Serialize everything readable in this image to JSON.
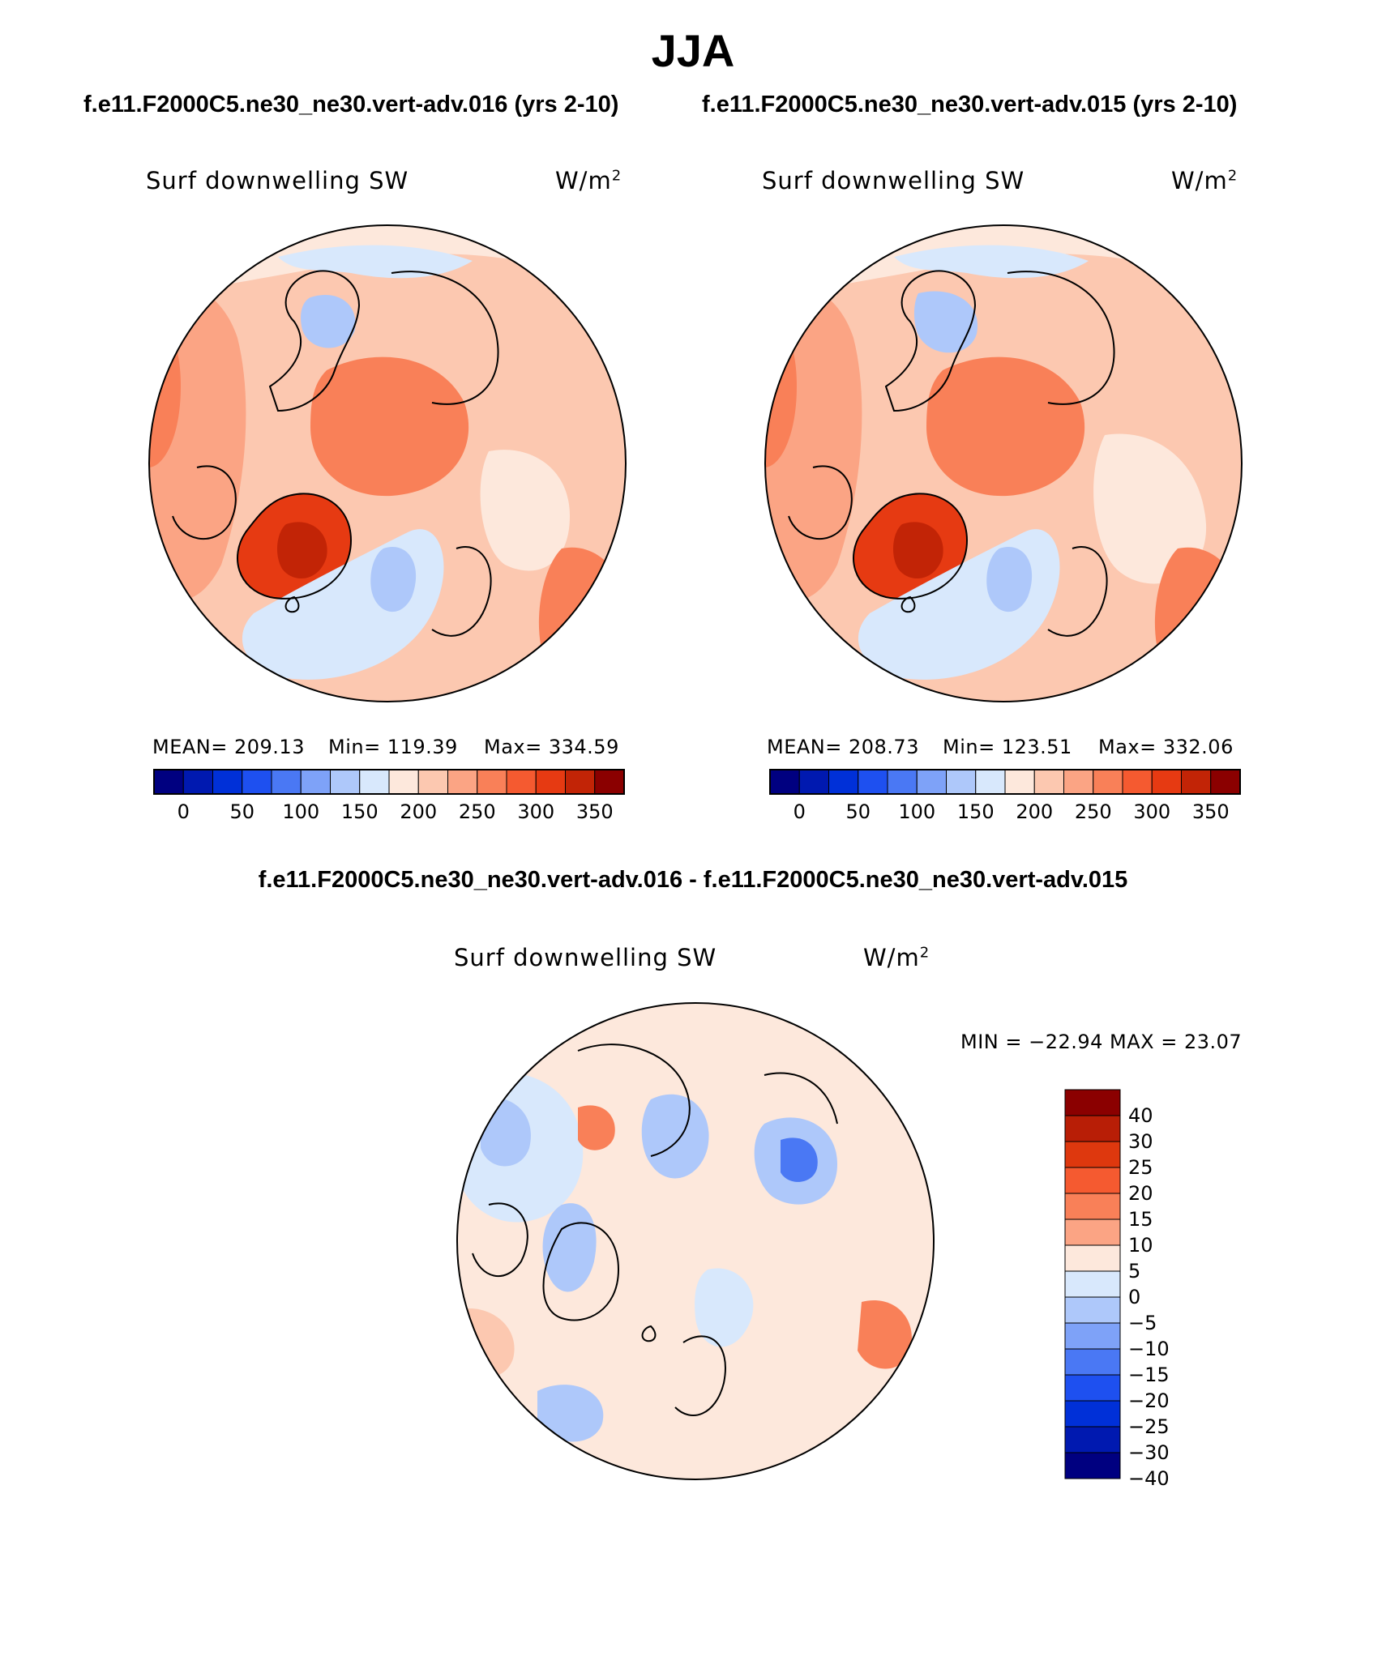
{
  "title": "JJA",
  "subtitle_left": "f.e11.F2000C5.ne30_ne30.vert-adv.016 (yrs 2-10)",
  "subtitle_right": "f.e11.F2000C5.ne30_ne30.vert-adv.015 (yrs 2-10)",
  "diff_title": "f.e11.F2000C5.ne30_ne30.vert-adv.016 - f.e11.F2000C5.ne30_ne30.vert-adv.015",
  "panels": [
    {
      "variable": "Surf downwelling SW",
      "units_base": "W/m",
      "units_exp": "2",
      "mean": "MEAN= 209.13",
      "min": "Min= 119.39",
      "max": "Max= 334.59"
    },
    {
      "variable": "Surf downwelling SW",
      "units_base": "W/m",
      "units_exp": "2",
      "mean": "MEAN= 208.73",
      "min": "Min= 123.51",
      "max": "Max= 332.06"
    }
  ],
  "diff_panel": {
    "variable": "Surf downwelling SW",
    "units_base": "W/m",
    "units_exp": "2",
    "minmax": "MIN = −22.94 MAX =  23.07"
  },
  "colorbar_main": {
    "colors": [
      "#000080",
      "#0019b0",
      "#0030d8",
      "#1e50f0",
      "#4a78f4",
      "#7ea2f8",
      "#aec8fa",
      "#d8e8fc",
      "#fde8dc",
      "#fcc8b0",
      "#fba484",
      "#f98058",
      "#f55a30",
      "#e63a12",
      "#c22406",
      "#8b0000"
    ],
    "ticks": [
      "0",
      "50",
      "100",
      "150",
      "200",
      "250",
      "300",
      "350"
    ]
  },
  "colorbar_diff": {
    "colors": [
      "#8b0000",
      "#b81e06",
      "#de380e",
      "#f55a30",
      "#f98058",
      "#fba484",
      "#fde8dc",
      "#d8e8fc",
      "#aec8fa",
      "#7ea2f8",
      "#4a78f4",
      "#1e50f0",
      "#0030d8",
      "#0019b0",
      "#000080"
    ],
    "ticks": [
      "40",
      "30",
      "25",
      "20",
      "15",
      "10",
      "5",
      "0",
      "−5",
      "−10",
      "−15",
      "−20",
      "−25",
      "−30",
      "−40"
    ]
  }
}
